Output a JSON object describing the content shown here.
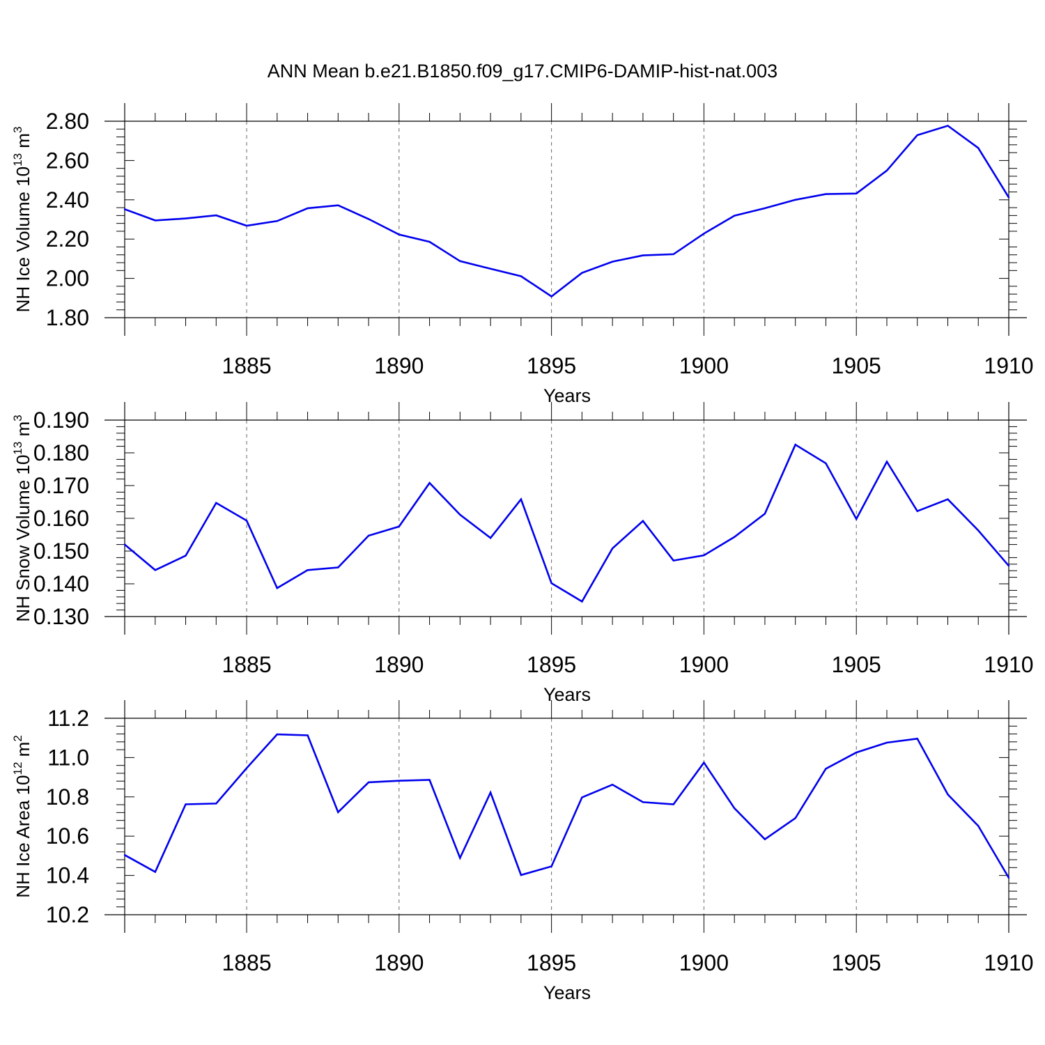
{
  "title": "ANN Mean b.e21.B1850.f09_g17.CMIP6-DAMIP-hist-nat.003",
  "line_color": "#0000ee",
  "chart_data": [
    {
      "type": "line",
      "ylabel": {
        "prefix": "NH Ice Volume 10",
        "exp": "13",
        "unit": " m",
        "unit_exp": "3"
      },
      "xlabel": "Years",
      "xlim": [
        1881,
        1910
      ],
      "ylim": [
        1.8,
        2.8
      ],
      "yticks": [
        1.8,
        2.0,
        2.2,
        2.4,
        2.6,
        2.8
      ],
      "ytick_labels": [
        "1.80",
        "2.00",
        "2.20",
        "2.40",
        "2.60",
        "2.80"
      ],
      "xticks": [
        1885,
        1890,
        1895,
        1900,
        1905,
        1910
      ],
      "xtick_labels": [
        "1885",
        "1890",
        "1895",
        "1900",
        "1905",
        "1910"
      ],
      "x": [
        1881,
        1882,
        1883,
        1884,
        1885,
        1886,
        1887,
        1888,
        1889,
        1890,
        1891,
        1892,
        1893,
        1894,
        1895,
        1896,
        1897,
        1898,
        1899,
        1900,
        1901,
        1902,
        1903,
        1904,
        1905,
        1906,
        1907,
        1908,
        1909,
        1910
      ],
      "values": [
        2.352,
        2.295,
        2.305,
        2.321,
        2.268,
        2.292,
        2.357,
        2.372,
        2.302,
        2.223,
        2.186,
        2.088,
        2.049,
        2.011,
        1.908,
        2.028,
        2.085,
        2.117,
        2.123,
        2.228,
        2.319,
        2.357,
        2.4,
        2.429,
        2.432,
        2.549,
        2.729,
        2.777,
        2.664,
        2.412
      ],
      "grid_x": true
    },
    {
      "type": "line",
      "ylabel": {
        "prefix": "NH Snow Volume 10",
        "exp": "13",
        "unit": " m",
        "unit_exp": "3"
      },
      "xlabel": "Years",
      "xlim": [
        1881,
        1910
      ],
      "ylim": [
        0.13,
        0.19
      ],
      "yticks": [
        0.13,
        0.14,
        0.15,
        0.16,
        0.17,
        0.18,
        0.19
      ],
      "ytick_labels": [
        "0.130",
        "0.140",
        "0.150",
        "0.160",
        "0.170",
        "0.180",
        "0.190"
      ],
      "xticks": [
        1885,
        1890,
        1895,
        1900,
        1905,
        1910
      ],
      "xtick_labels": [
        "1885",
        "1890",
        "1895",
        "1900",
        "1905",
        "1910"
      ],
      "x": [
        1881,
        1882,
        1883,
        1884,
        1885,
        1886,
        1887,
        1888,
        1889,
        1890,
        1891,
        1892,
        1893,
        1894,
        1895,
        1896,
        1897,
        1898,
        1899,
        1900,
        1901,
        1902,
        1903,
        1904,
        1905,
        1906,
        1907,
        1908,
        1909,
        1910
      ],
      "values": [
        0.152,
        0.1442,
        0.1486,
        0.1647,
        0.1593,
        0.1387,
        0.1442,
        0.145,
        0.1547,
        0.1575,
        0.1708,
        0.1611,
        0.154,
        0.1658,
        0.1402,
        0.1346,
        0.1508,
        0.1592,
        0.1471,
        0.1487,
        0.1543,
        0.1614,
        0.1825,
        0.1768,
        0.1598,
        0.1773,
        0.1622,
        0.1658,
        0.1563,
        0.1455
      ],
      "grid_x": true
    },
    {
      "type": "line",
      "ylabel": {
        "prefix": "NH Ice Area 10",
        "exp": "12",
        "unit": " m",
        "unit_exp": "2"
      },
      "xlabel": "Years",
      "xlim": [
        1881,
        1910
      ],
      "ylim": [
        10.2,
        11.2
      ],
      "yticks": [
        10.2,
        10.4,
        10.6,
        10.8,
        11.0,
        11.2
      ],
      "ytick_labels": [
        "10.2",
        "10.4",
        "10.6",
        "10.8",
        "11.0",
        "11.2"
      ],
      "xticks": [
        1885,
        1890,
        1895,
        1900,
        1905,
        1910
      ],
      "xtick_labels": [
        "1885",
        "1890",
        "1895",
        "1900",
        "1905",
        "1910"
      ],
      "x": [
        1881,
        1882,
        1883,
        1884,
        1885,
        1886,
        1887,
        1888,
        1889,
        1890,
        1891,
        1892,
        1893,
        1894,
        1895,
        1896,
        1897,
        1898,
        1899,
        1900,
        1901,
        1902,
        1903,
        1904,
        1905,
        1906,
        1907,
        1908,
        1909,
        1910
      ],
      "values": [
        10.504,
        10.418,
        10.762,
        10.766,
        10.946,
        11.118,
        11.113,
        10.722,
        10.874,
        10.882,
        10.886,
        10.489,
        10.822,
        10.402,
        10.446,
        10.797,
        10.862,
        10.773,
        10.762,
        10.974,
        10.742,
        10.584,
        10.692,
        10.943,
        11.026,
        11.076,
        11.096,
        10.812,
        10.652,
        10.388
      ],
      "grid_x": true
    }
  ]
}
